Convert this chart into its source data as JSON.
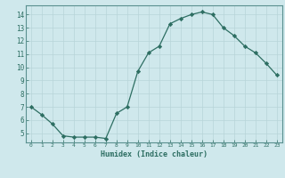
{
  "x": [
    0,
    1,
    2,
    3,
    4,
    5,
    6,
    7,
    8,
    9,
    10,
    11,
    12,
    13,
    14,
    15,
    16,
    17,
    18,
    19,
    20,
    21,
    22,
    23
  ],
  "y": [
    7.0,
    6.4,
    5.7,
    4.8,
    4.7,
    4.7,
    4.7,
    4.6,
    6.5,
    7.0,
    9.7,
    11.1,
    11.6,
    13.3,
    13.7,
    14.0,
    14.2,
    14.0,
    13.0,
    12.4,
    11.6,
    11.1,
    10.3,
    9.4
  ],
  "xlabel": "Humidex (Indice chaleur)",
  "ylim": [
    4.3,
    14.7
  ],
  "xlim": [
    -0.5,
    23.5
  ],
  "yticks": [
    5,
    6,
    7,
    8,
    9,
    10,
    11,
    12,
    13,
    14
  ],
  "xticks": [
    0,
    1,
    2,
    3,
    4,
    5,
    6,
    7,
    8,
    9,
    10,
    11,
    12,
    13,
    14,
    15,
    16,
    17,
    18,
    19,
    20,
    21,
    22,
    23
  ],
  "line_color": "#2d6e62",
  "marker": "D",
  "bg_color": "#cfe8ec",
  "grid_color": "#b8d4d8",
  "tick_color": "#2d6e62",
  "label_color": "#2d6e62",
  "spine_color": "#5a9090"
}
